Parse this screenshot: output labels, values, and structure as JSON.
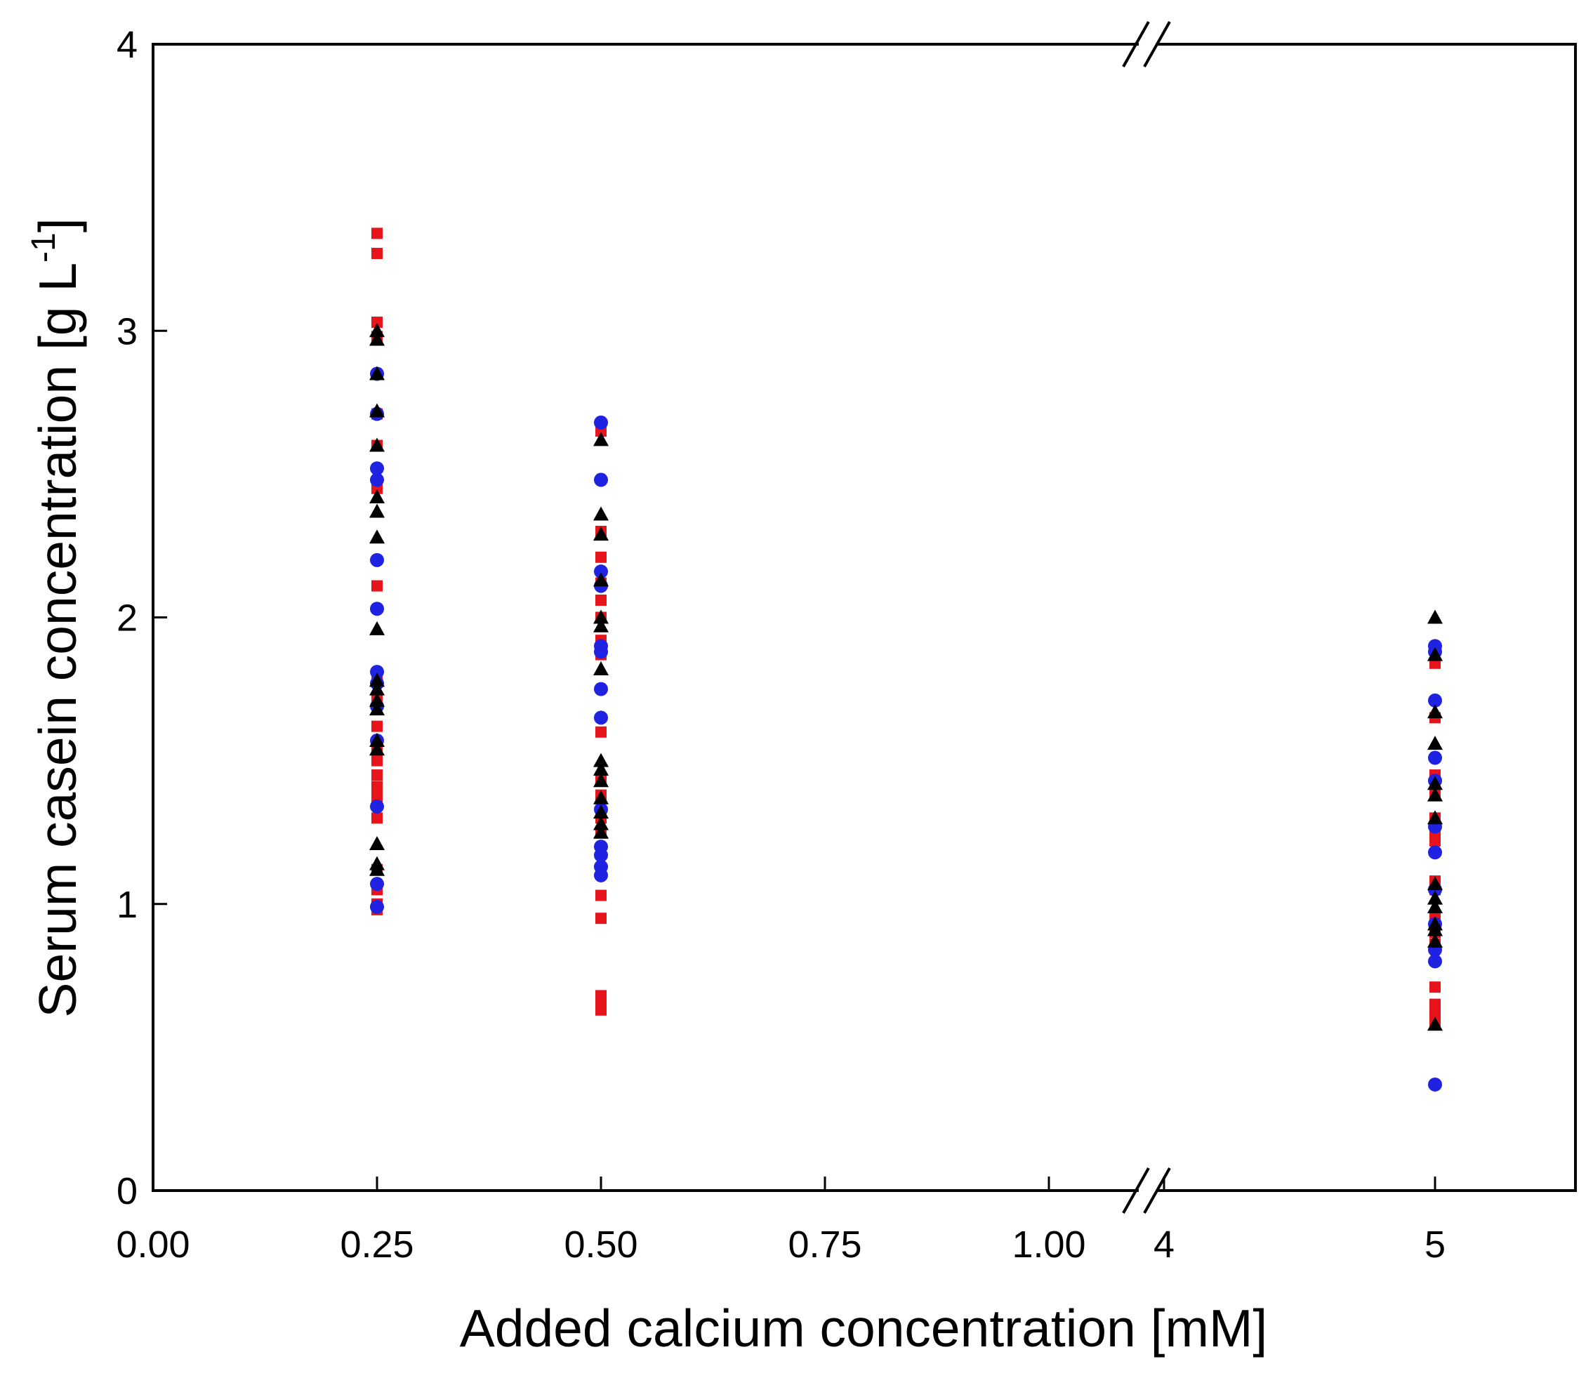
{
  "chart_data": {
    "type": "scatter",
    "title": "",
    "xlabel": "Added calcium concentration [mM]",
    "ylabel": {
      "prefix": "Serum casein concentration [g L",
      "superscript": "-1",
      "suffix": "]"
    },
    "ylim": [
      0,
      4
    ],
    "yticks": [
      "0",
      "1",
      "2",
      "3",
      "4"
    ],
    "x_axis": {
      "broken": true,
      "segments": [
        {
          "range": [
            0.0,
            1.08
          ],
          "ticks": [
            0.0,
            0.25,
            0.5,
            0.75,
            1.0
          ],
          "tick_labels": [
            "0.00",
            "0.25",
            "0.50",
            "0.75",
            "1.00"
          ]
        },
        {
          "range": [
            4.0,
            5.5
          ],
          "ticks": [
            4,
            5
          ],
          "tick_labels": [
            "4",
            "5"
          ]
        }
      ]
    },
    "grid": false,
    "legend": "none",
    "series": [
      {
        "marker": "square",
        "color": "#e8141b",
        "points": [
          [
            0.25,
            3.34
          ],
          [
            0.25,
            3.27
          ],
          [
            0.25,
            3.03
          ],
          [
            0.25,
            2.98
          ],
          [
            0.25,
            2.71
          ],
          [
            0.25,
            2.6
          ],
          [
            0.25,
            2.45
          ],
          [
            0.25,
            2.11
          ],
          [
            0.25,
            1.8
          ],
          [
            0.25,
            1.72
          ],
          [
            0.25,
            1.62
          ],
          [
            0.25,
            1.55
          ],
          [
            0.25,
            1.5
          ],
          [
            0.25,
            1.45
          ],
          [
            0.25,
            1.41
          ],
          [
            0.25,
            1.38
          ],
          [
            0.25,
            1.35
          ],
          [
            0.25,
            1.3
          ],
          [
            0.25,
            1.12
          ],
          [
            0.25,
            1.05
          ],
          [
            0.25,
            1.0
          ],
          [
            0.25,
            0.98
          ],
          [
            0.5,
            2.65
          ],
          [
            0.5,
            2.3
          ],
          [
            0.5,
            2.21
          ],
          [
            0.5,
            2.12
          ],
          [
            0.5,
            2.06
          ],
          [
            0.5,
            2.0
          ],
          [
            0.5,
            1.92
          ],
          [
            0.5,
            1.87
          ],
          [
            0.5,
            1.6
          ],
          [
            0.5,
            1.44
          ],
          [
            0.5,
            1.38
          ],
          [
            0.5,
            1.3
          ],
          [
            0.5,
            1.25
          ],
          [
            0.5,
            1.03
          ],
          [
            0.5,
            0.95
          ],
          [
            0.5,
            0.68
          ],
          [
            0.5,
            0.65
          ],
          [
            0.5,
            0.63
          ],
          [
            5,
            1.84
          ],
          [
            5,
            1.65
          ],
          [
            5,
            1.45
          ],
          [
            5,
            1.38
          ],
          [
            5,
            1.3
          ],
          [
            5,
            1.25
          ],
          [
            5,
            1.22
          ],
          [
            5,
            1.08
          ],
          [
            5,
            1.05
          ],
          [
            5,
            0.95
          ],
          [
            5,
            0.9
          ],
          [
            5,
            0.86
          ],
          [
            5,
            0.71
          ],
          [
            5,
            0.65
          ],
          [
            5,
            0.62
          ],
          [
            5,
            0.59
          ]
        ]
      },
      {
        "marker": "circle",
        "color": "#1f22e0",
        "points": [
          [
            0.25,
            2.85
          ],
          [
            0.25,
            2.71
          ],
          [
            0.25,
            2.52
          ],
          [
            0.25,
            2.48
          ],
          [
            0.25,
            2.2
          ],
          [
            0.25,
            2.03
          ],
          [
            0.25,
            1.81
          ],
          [
            0.25,
            1.77
          ],
          [
            0.25,
            1.69
          ],
          [
            0.25,
            1.57
          ],
          [
            0.25,
            1.34
          ],
          [
            0.25,
            1.07
          ],
          [
            0.25,
            0.99
          ],
          [
            0.5,
            2.68
          ],
          [
            0.5,
            2.48
          ],
          [
            0.5,
            2.16
          ],
          [
            0.5,
            2.11
          ],
          [
            0.5,
            1.9
          ],
          [
            0.5,
            1.88
          ],
          [
            0.5,
            1.75
          ],
          [
            0.5,
            1.65
          ],
          [
            0.5,
            1.33
          ],
          [
            0.5,
            1.2
          ],
          [
            0.5,
            1.17
          ],
          [
            0.5,
            1.13
          ],
          [
            0.5,
            1.1
          ],
          [
            5,
            1.9
          ],
          [
            5,
            1.88
          ],
          [
            5,
            1.71
          ],
          [
            5,
            1.51
          ],
          [
            5,
            1.43
          ],
          [
            5,
            1.27
          ],
          [
            5,
            1.18
          ],
          [
            5,
            1.05
          ],
          [
            5,
            0.93
          ],
          [
            5,
            0.84
          ],
          [
            5,
            0.8
          ],
          [
            5,
            0.37
          ]
        ]
      },
      {
        "marker": "triangle",
        "color": "#000000",
        "points": [
          [
            0.25,
            3.0
          ],
          [
            0.25,
            2.97
          ],
          [
            0.25,
            2.85
          ],
          [
            0.25,
            2.72
          ],
          [
            0.25,
            2.6
          ],
          [
            0.25,
            2.42
          ],
          [
            0.25,
            2.37
          ],
          [
            0.25,
            2.28
          ],
          [
            0.25,
            1.96
          ],
          [
            0.25,
            1.78
          ],
          [
            0.25,
            1.75
          ],
          [
            0.25,
            1.71
          ],
          [
            0.25,
            1.68
          ],
          [
            0.25,
            1.57
          ],
          [
            0.25,
            1.54
          ],
          [
            0.25,
            1.21
          ],
          [
            0.25,
            1.14
          ],
          [
            0.25,
            1.12
          ],
          [
            0.5,
            2.62
          ],
          [
            0.5,
            2.36
          ],
          [
            0.5,
            2.29
          ],
          [
            0.5,
            2.13
          ],
          [
            0.5,
            2.0
          ],
          [
            0.5,
            1.97
          ],
          [
            0.5,
            1.82
          ],
          [
            0.5,
            1.5
          ],
          [
            0.5,
            1.47
          ],
          [
            0.5,
            1.43
          ],
          [
            0.5,
            1.37
          ],
          [
            0.5,
            1.32
          ],
          [
            0.5,
            1.28
          ],
          [
            0.5,
            1.25
          ],
          [
            5,
            2.0
          ],
          [
            5,
            1.87
          ],
          [
            5,
            1.67
          ],
          [
            5,
            1.56
          ],
          [
            5,
            1.42
          ],
          [
            5,
            1.38
          ],
          [
            5,
            1.3
          ],
          [
            5,
            1.07
          ],
          [
            5,
            1.02
          ],
          [
            5,
            0.99
          ],
          [
            5,
            0.93
          ],
          [
            5,
            0.91
          ],
          [
            5,
            0.87
          ],
          [
            5,
            0.58
          ]
        ]
      }
    ]
  }
}
